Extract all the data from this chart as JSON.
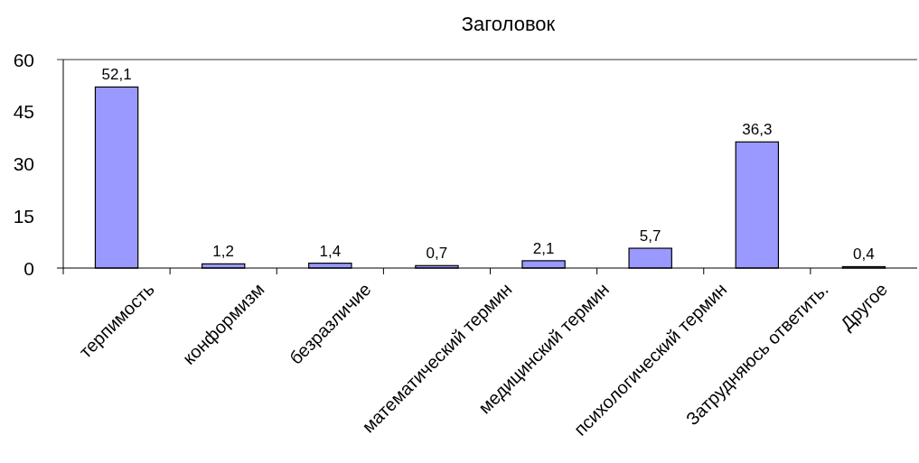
{
  "chart_data": {
    "type": "bar",
    "title": "Заголовок",
    "categories": [
      "терпимость",
      "конформизм",
      "безразличие",
      "математический термин",
      "медицинский термин",
      "психологический термин",
      "Затрудняюсь ответить.",
      "Другое"
    ],
    "values": [
      52.1,
      1.2,
      1.4,
      0.7,
      2.1,
      5.7,
      36.3,
      0.4
    ],
    "value_labels": [
      "52,1",
      "1,2",
      "1,4",
      "0,7",
      "2,1",
      "5,7",
      "36,3",
      "0,4"
    ],
    "color": "#9999ff",
    "ylim": [
      0,
      60
    ],
    "yticks": [
      0,
      15,
      30,
      45,
      60
    ]
  }
}
